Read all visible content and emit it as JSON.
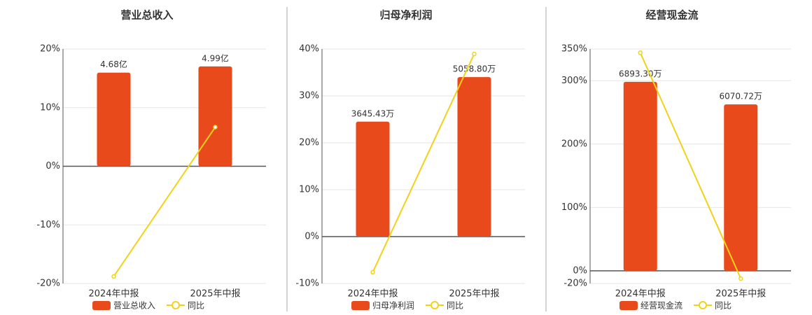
{
  "chart_data": [
    {
      "type": "bar",
      "title": "营业总收入",
      "categories": [
        "2024年中报",
        "2025年中报"
      ],
      "series": [
        {
          "name": "营业总收入",
          "type": "bar",
          "axis": "y2",
          "color": "#e84a1c",
          "values": [
            4.68,
            4.99
          ],
          "value_labels": [
            "4.68亿",
            "4.99亿"
          ]
        },
        {
          "name": "同比",
          "type": "line",
          "color": "#f0d21a",
          "values": [
            -18.8,
            6.67
          ]
        }
      ],
      "ylim": [
        -20,
        20
      ],
      "yticks": [
        {
          "value": 20,
          "label": "20%"
        },
        {
          "value": 10,
          "label": "10%"
        },
        {
          "value": 0,
          "label": "0%"
        },
        {
          "value": -10,
          "label": "-10%"
        },
        {
          "value": -20,
          "label": "-20%"
        }
      ],
      "y2lim": [
        -5.86,
        5.86
      ],
      "grid": true
    },
    {
      "type": "bar",
      "title": "归母净利润",
      "categories": [
        "2024年中报",
        "2025年中报"
      ],
      "series": [
        {
          "name": "归母净利润",
          "type": "bar",
          "axis": "y2",
          "color": "#e84a1c",
          "values": [
            3645.43,
            5058.8
          ],
          "value_labels": [
            "3645.43万",
            "5058.80万"
          ]
        },
        {
          "name": "同比",
          "type": "line",
          "color": "#f0d21a",
          "values": [
            -7.6,
            38.96
          ]
        }
      ],
      "ylim": [
        -10,
        40
      ],
      "yticks": [
        {
          "value": 40,
          "label": "40%"
        },
        {
          "value": 30,
          "label": "30%"
        },
        {
          "value": 20,
          "label": "20%"
        },
        {
          "value": 10,
          "label": "10%"
        },
        {
          "value": 0,
          "label": "0%"
        },
        {
          "value": -10,
          "label": "-10%"
        }
      ],
      "y2lim": [
        -1487.5,
        5950
      ],
      "grid": true
    },
    {
      "type": "bar",
      "title": "经营现金流",
      "categories": [
        "2024年中报",
        "2025年中报"
      ],
      "series": [
        {
          "name": "经营现金流",
          "type": "bar",
          "axis": "y2",
          "color": "#e84a1c",
          "values": [
            6893.3,
            6070.72
          ],
          "value_labels": [
            "6893.30万",
            "6070.72万"
          ]
        },
        {
          "name": "同比",
          "type": "line",
          "color": "#f0d21a",
          "values": [
            344,
            -12.2
          ]
        }
      ],
      "ylim": [
        -20,
        350
      ],
      "yticks": [
        {
          "value": 350,
          "label": "350%"
        },
        {
          "value": 300,
          "label": "300%"
        },
        {
          "value": 200,
          "label": "200%"
        },
        {
          "value": 100,
          "label": "100%"
        },
        {
          "value": 0,
          "label": "0%"
        },
        {
          "value": -20,
          "label": "-20%"
        }
      ],
      "y2lim": [
        -462,
        8090
      ],
      "grid": true
    }
  ]
}
